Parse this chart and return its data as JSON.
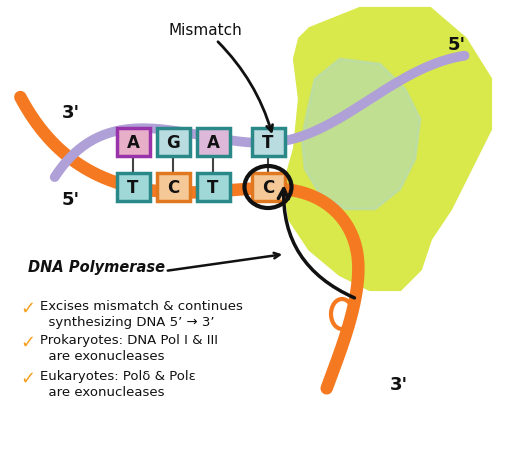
{
  "bg_color": "#ffffff",
  "orange_color": "#f47920",
  "purple_color": "#b0a0d8",
  "yellow_green_color": "#d9e84a",
  "light_green_color": "#b8dcb0",
  "dark_outline": "#222222",
  "text_color": "#111111",
  "check_color": "#f5a020",
  "base_top_colors": [
    "#e8b0c8",
    "#b8dce0",
    "#ddb8d8",
    "#b8dce0"
  ],
  "base_top_borders": [
    "#9933aa",
    "#2a8888",
    "#2a8888",
    "#2a8888"
  ],
  "base_bot_colors": [
    "#a0d8d8",
    "#f5c898",
    "#a0d8d8",
    "#f5c898"
  ],
  "base_bot_borders": [
    "#2a8888",
    "#e07820",
    "#2a8888",
    "#e07820"
  ],
  "bases_top": [
    "A",
    "G",
    "A",
    "T"
  ],
  "bases_bottom": [
    "T",
    "C",
    "T",
    "C"
  ],
  "mismatch_text": "Mismatch",
  "label_3_left": "3'",
  "label_5_left": "5'",
  "label_5_right": "5'",
  "label_3_right": "3'",
  "bullet_title": "DNA Polymerase",
  "bullet1a": "Excises mismatch & continues",
  "bullet1b": "  synthesizing DNA 5’ → 3’",
  "bullet2a": "Prokaryotes: DNA Pol I & III",
  "bullet2b": "  are exonucleases",
  "bullet3a": "Eukaryotes: Polδ & Polε",
  "bullet3b": "  are exonucleases"
}
